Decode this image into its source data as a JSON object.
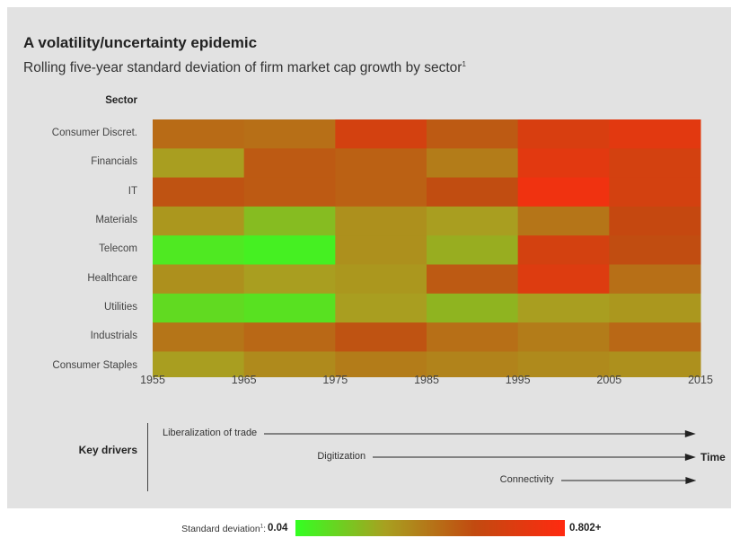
{
  "header": {
    "title": "A volatility/uncertainty epidemic",
    "subtitle": "Rolling five-year standard deviation of firm market cap growth by sector",
    "subtitle_footnote": "1"
  },
  "chart_data": {
    "type": "heatmap",
    "title": "A volatility/uncertainty epidemic",
    "ylabel": "Sector",
    "sectors": [
      "Consumer Discret.",
      "Financials",
      "IT",
      "Materials",
      "Telecom",
      "Healthcare",
      "Utilities",
      "Industrials",
      "Consumer Staples"
    ],
    "x_ticks": [
      "1955",
      "1965",
      "1975",
      "1985",
      "1995",
      "2005",
      "2015"
    ],
    "xlim": [
      1955,
      2015
    ],
    "color_scale": {
      "min": 0.04,
      "max": 0.802,
      "colors": [
        "#33ff22",
        "#a8a020",
        "#c24a10",
        "#ff2a10"
      ]
    },
    "periods": [
      {
        "start": 1955,
        "end": 1965,
        "values": [
          0.45,
          0.3,
          0.52,
          0.32,
          0.1,
          0.34,
          0.14,
          0.42,
          0.3
        ]
      },
      {
        "start": 1965,
        "end": 1975,
        "values": [
          0.44,
          0.5,
          0.5,
          0.22,
          0.08,
          0.3,
          0.12,
          0.46,
          0.36
        ]
      },
      {
        "start": 1975,
        "end": 1985,
        "values": [
          0.62,
          0.48,
          0.48,
          0.34,
          0.34,
          0.32,
          0.3,
          0.52,
          0.4
        ]
      },
      {
        "start": 1985,
        "end": 1995,
        "values": [
          0.5,
          0.4,
          0.54,
          0.3,
          0.26,
          0.5,
          0.24,
          0.44,
          0.38
        ]
      },
      {
        "start": 1995,
        "end": 2005,
        "values": [
          0.64,
          0.68,
          0.74,
          0.42,
          0.62,
          0.66,
          0.3,
          0.4,
          0.36
        ]
      },
      {
        "start": 2005,
        "end": 2015,
        "values": [
          0.68,
          0.62,
          0.62,
          0.56,
          0.54,
          0.44,
          0.32,
          0.46,
          0.34
        ]
      }
    ],
    "legend": {
      "label": "Standard deviation",
      "label_footnote": "1",
      "min_label": "0.04",
      "max_label": "0.802+"
    }
  },
  "drivers": {
    "label": "Key drivers",
    "items": [
      {
        "name": "Liberalization of trade",
        "start": 1955
      },
      {
        "name": "Digitization",
        "start": 1975
      },
      {
        "name": "Connectivity",
        "start": 1995
      }
    ],
    "axis_label": "Time",
    "arrow_color": "#222222"
  }
}
